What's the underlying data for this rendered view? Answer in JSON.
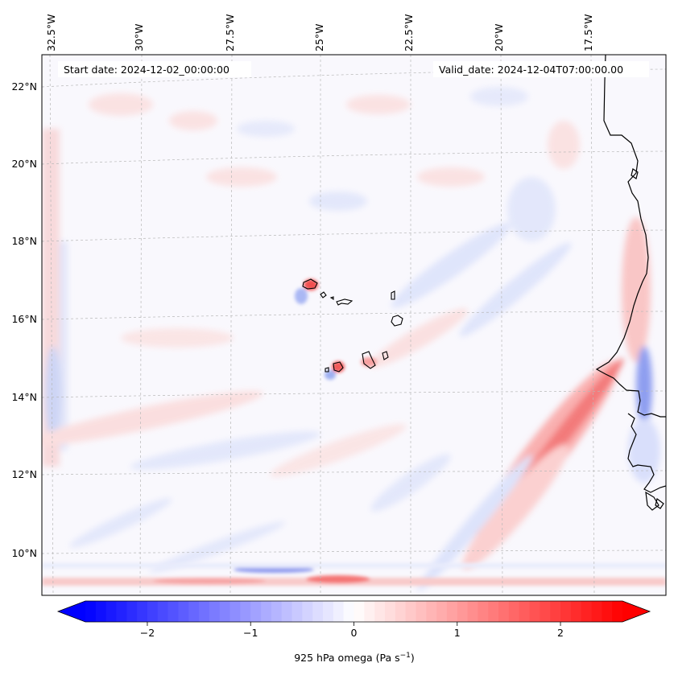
{
  "map": {
    "variable_label": "925 hPa omega (Pa s",
    "units_superscript": "−1",
    "units_close": ")",
    "start_date_label": "Start date: 2024-12-02_00:00:00",
    "valid_date_label": "Valid_date: 2024-12-04T07:00:00.00",
    "longitude_ticks": [
      "32.5°W",
      "30°W",
      "27.5°W",
      "25°W",
      "22.5°W",
      "20°W",
      "17.5°W"
    ],
    "latitude_ticks": [
      "22°N",
      "20°N",
      "18°N",
      "16°N",
      "14°N",
      "12°N",
      "10°N"
    ],
    "gridlines": true,
    "projection": "curved conic grid",
    "colormap": "bwr (blue-white-red)",
    "colors": {
      "negative": "#0000ff",
      "zero": "#ffffff",
      "positive": "#ff0000",
      "coast": "#000000",
      "grid": "#b0b0b0"
    }
  },
  "colorbar": {
    "range": [
      -2.6,
      2.6
    ],
    "extend": "both",
    "ticks": [
      {
        "value": -2,
        "label": "−2"
      },
      {
        "value": -1,
        "label": "−1"
      },
      {
        "value": 0,
        "label": "0"
      },
      {
        "value": 1,
        "label": "1"
      },
      {
        "value": 2,
        "label": "2"
      }
    ]
  }
}
